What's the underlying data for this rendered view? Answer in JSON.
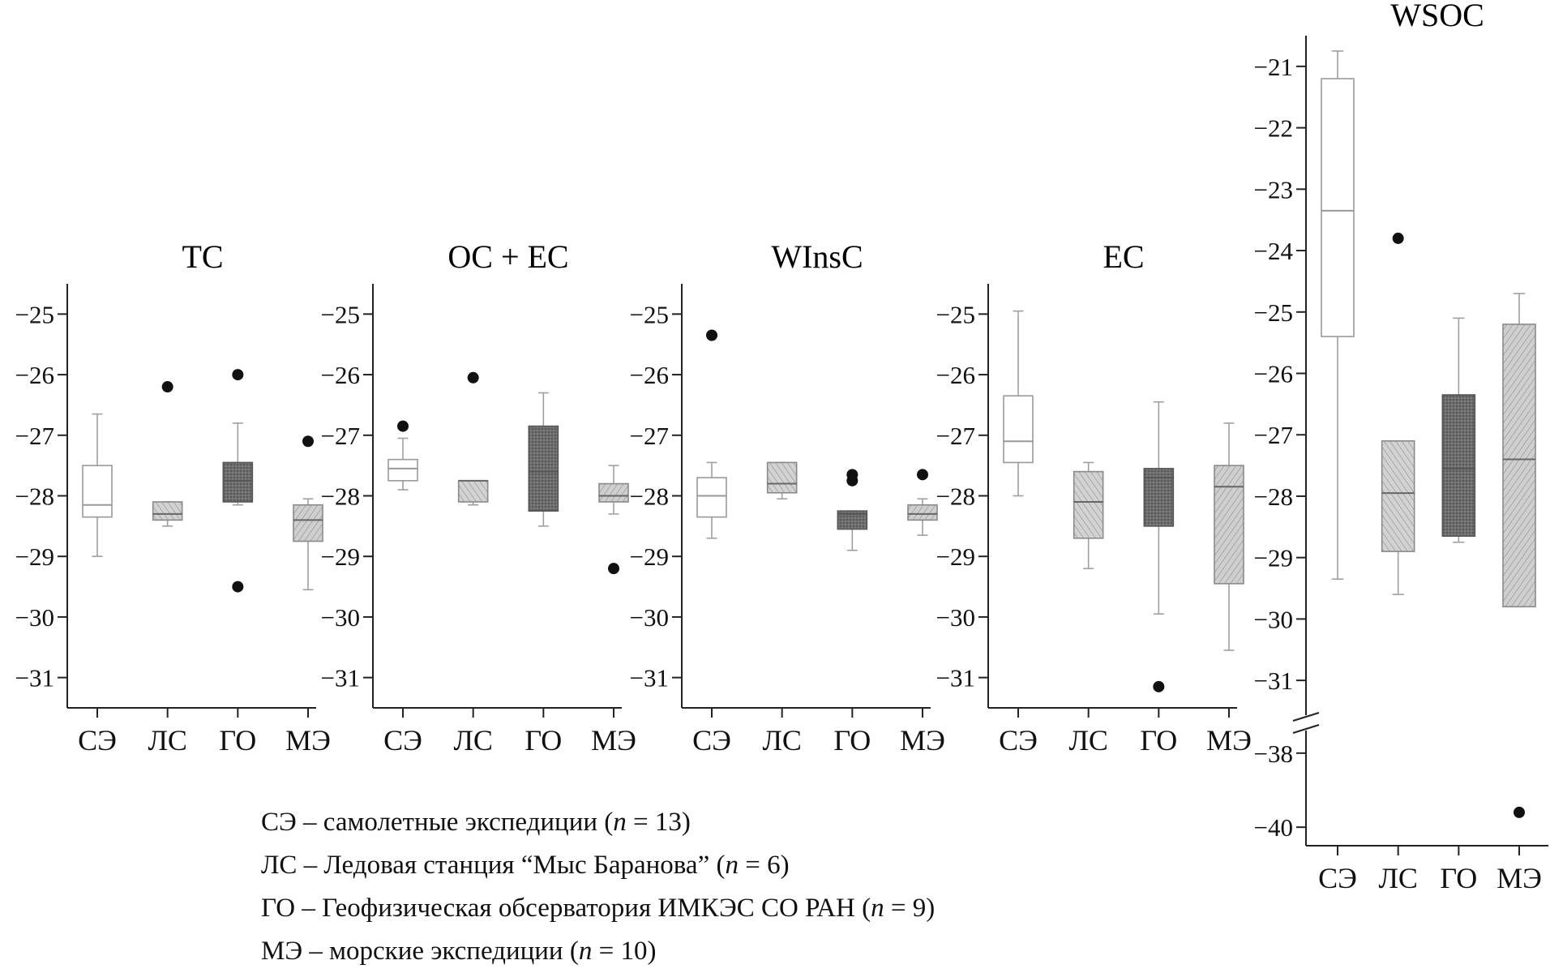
{
  "chart_data": [
    {
      "type": "box",
      "title": "TC",
      "categories": [
        "СЭ",
        "ЛС",
        "ГО",
        "МЭ"
      ],
      "ylim": [
        -31.5,
        -24.5
      ],
      "yticks": [
        -25,
        -26,
        -27,
        -28,
        -29,
        -30,
        -31
      ],
      "boxes": [
        {
          "min": -29.0,
          "q1": -28.35,
          "median": -28.15,
          "q3": -27.5,
          "max": -26.65,
          "outliers": []
        },
        {
          "min": -28.5,
          "q1": -28.4,
          "median": -28.3,
          "q3": -28.1,
          "max": -28.1,
          "outliers": [
            -26.2
          ]
        },
        {
          "min": -28.15,
          "q1": -28.1,
          "median": -27.75,
          "q3": -27.45,
          "max": -26.8,
          "outliers": [
            -26.0,
            -29.5
          ]
        },
        {
          "min": -29.55,
          "q1": -28.75,
          "median": -28.4,
          "q3": -28.15,
          "max": -28.05,
          "outliers": [
            -27.1
          ]
        }
      ]
    },
    {
      "type": "box",
      "title": "OC + EC",
      "categories": [
        "СЭ",
        "ЛС",
        "ГО",
        "МЭ"
      ],
      "ylim": [
        -31.5,
        -24.5
      ],
      "yticks": [
        -25,
        -26,
        -27,
        -28,
        -29,
        -30,
        -31
      ],
      "boxes": [
        {
          "min": -27.9,
          "q1": -27.75,
          "median": -27.55,
          "q3": -27.4,
          "max": -27.05,
          "outliers": [
            -26.85
          ]
        },
        {
          "min": -28.15,
          "q1": -28.1,
          "median": -27.75,
          "q3": -27.75,
          "max": -27.75,
          "outliers": [
            -26.05
          ]
        },
        {
          "min": -28.5,
          "q1": -28.25,
          "median": -27.6,
          "q3": -26.85,
          "max": -26.3,
          "outliers": []
        },
        {
          "min": -28.3,
          "q1": -28.1,
          "median": -28.0,
          "q3": -27.8,
          "max": -27.5,
          "outliers": [
            -29.2
          ]
        }
      ]
    },
    {
      "type": "box",
      "title": "WInsC",
      "categories": [
        "СЭ",
        "ЛС",
        "ГО",
        "МЭ"
      ],
      "ylim": [
        -31.5,
        -24.5
      ],
      "yticks": [
        -25,
        -26,
        -27,
        -28,
        -29,
        -30,
        -31
      ],
      "boxes": [
        {
          "min": -28.7,
          "q1": -28.35,
          "median": -28.0,
          "q3": -27.7,
          "max": -27.45,
          "outliers": [
            -25.35
          ]
        },
        {
          "min": -28.05,
          "q1": -27.95,
          "median": -27.8,
          "q3": -27.45,
          "max": -27.45,
          "outliers": []
        },
        {
          "min": -28.9,
          "q1": -28.55,
          "median": -28.3,
          "q3": -28.25,
          "max": -28.25,
          "outliers": [
            -27.65,
            -27.75
          ]
        },
        {
          "min": -28.65,
          "q1": -28.4,
          "median": -28.3,
          "q3": -28.15,
          "max": -28.05,
          "outliers": [
            -27.65
          ]
        }
      ]
    },
    {
      "type": "box",
      "title": "EC",
      "categories": [
        "СЭ",
        "ЛС",
        "ГО",
        "МЭ"
      ],
      "ylim": [
        -31.5,
        -24.5
      ],
      "yticks": [
        -25,
        -26,
        -27,
        -28,
        -29,
        -30,
        -31
      ],
      "boxes": [
        {
          "min": -28.0,
          "q1": -27.45,
          "median": -27.1,
          "q3": -26.35,
          "max": -24.95,
          "outliers": []
        },
        {
          "min": -29.2,
          "q1": -28.7,
          "median": -28.1,
          "q3": -27.6,
          "max": -27.45,
          "outliers": []
        },
        {
          "min": -29.95,
          "q1": -28.5,
          "median": -27.7,
          "q3": -27.55,
          "max": -26.45,
          "outliers": [
            -31.15
          ]
        },
        {
          "min": -30.55,
          "q1": -29.45,
          "median": -27.85,
          "q3": -27.5,
          "max": -26.8,
          "outliers": []
        }
      ]
    },
    {
      "type": "box",
      "title": "WSOC",
      "categories": [
        "СЭ",
        "ЛС",
        "ГО",
        "МЭ"
      ],
      "ylim": [
        -31.5,
        -20.5
      ],
      "ylim_lower": [
        -40.5,
        -37.5
      ],
      "axis_break": true,
      "yticks": [
        -21,
        -22,
        -23,
        -24,
        -25,
        -26,
        -27,
        -28,
        -29,
        -30,
        -31
      ],
      "yticks_lower": [
        -38,
        -40
      ],
      "boxes": [
        {
          "min": -29.35,
          "q1": -25.4,
          "median": -23.35,
          "q3": -21.2,
          "max": -20.75,
          "outliers": []
        },
        {
          "min": -29.6,
          "q1": -28.9,
          "median": -27.95,
          "q3": -27.1,
          "max": -27.1,
          "outliers": [
            -23.8
          ]
        },
        {
          "min": -28.75,
          "q1": -28.65,
          "median": -27.55,
          "q3": -26.35,
          "max": -25.1,
          "outliers": []
        },
        {
          "min": -29.8,
          "q1": -29.8,
          "median": -27.4,
          "q3": -25.2,
          "max": -24.7,
          "outliers": [
            -39.6
          ]
        }
      ]
    }
  ],
  "legend": [
    {
      "code": "СЭ",
      "text": " – самолетные экспедиции (",
      "n": "n",
      "rest": " = 13)"
    },
    {
      "code": "ЛС",
      "text": " – Ледовая станция “Мыс Баранова” (",
      "n": "n",
      "rest": " = 6)"
    },
    {
      "code": "ГО",
      "text": " – Геофизическая обсерватория ИМКЭС СО РАН (",
      "n": "n",
      "rest": " = 9)"
    },
    {
      "code": "МЭ",
      "text": " – морские экспедиции (",
      "n": "n",
      "rest": " = 10)"
    }
  ],
  "styles": {
    "box_fills": [
      "#ffffff",
      "url(#hatch-light)",
      "url(#hatch-dark)",
      "url(#hatch-light2)"
    ],
    "box_strokes": [
      "#9a9a9a",
      "#8a8a8a",
      "#555555",
      "#8a8a8a"
    ],
    "median_colors": [
      "#999999",
      "#666666",
      "#555555",
      "#666666"
    ],
    "whisker_color": "#a0a0a0",
    "outlier_color": "#111111"
  }
}
